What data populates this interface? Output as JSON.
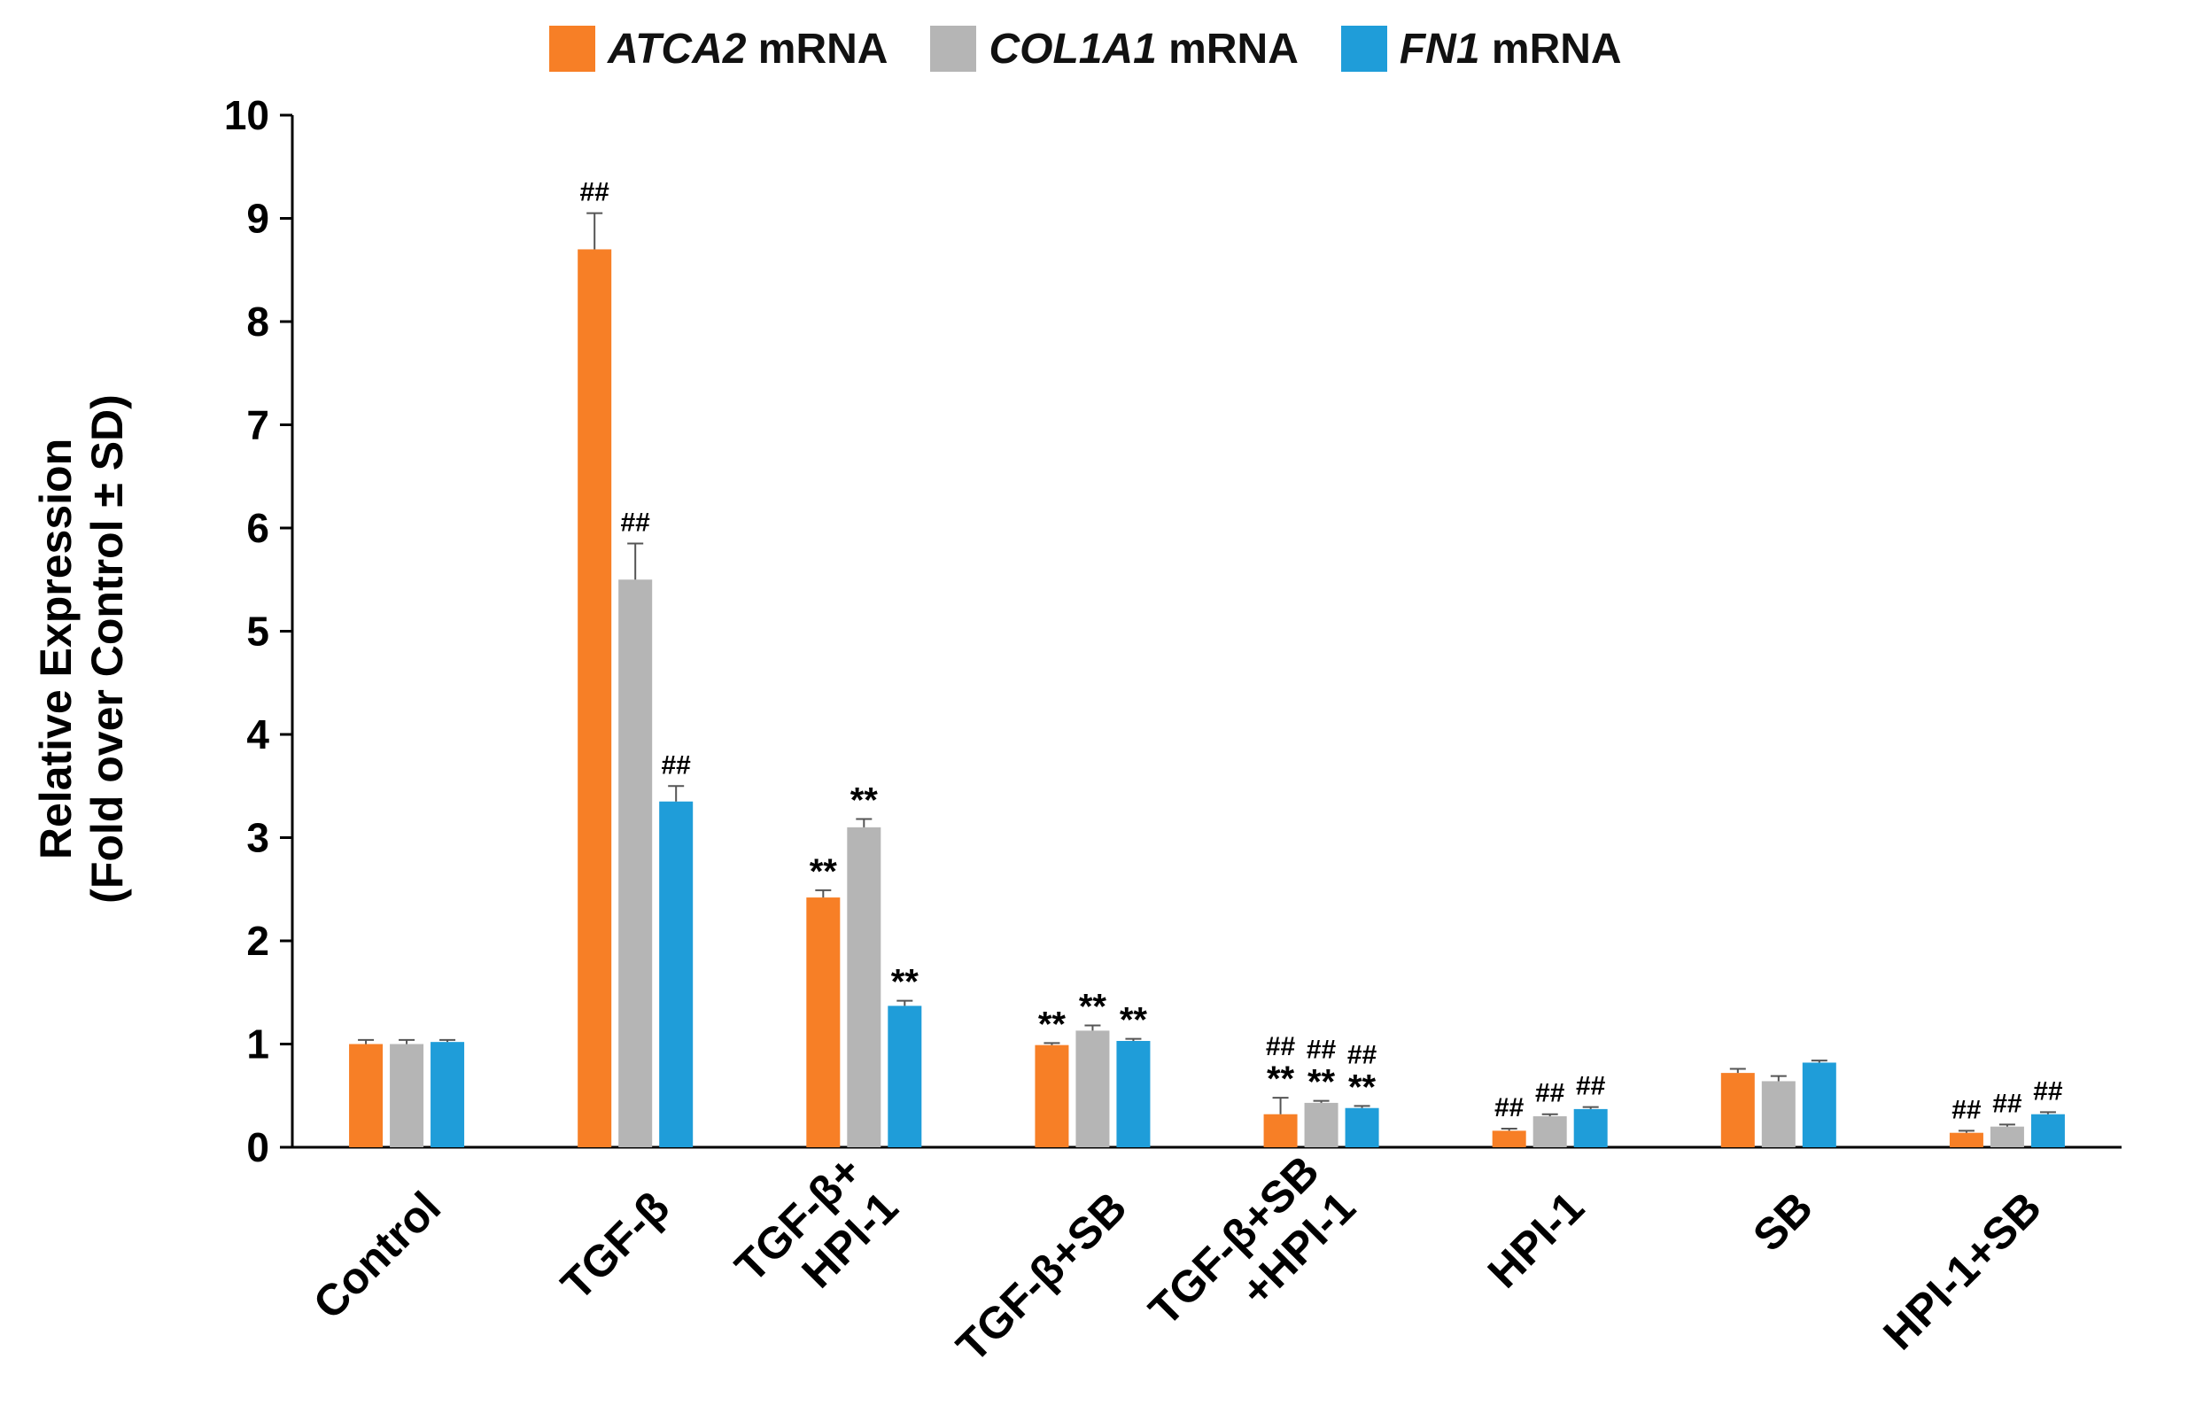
{
  "chart_data": {
    "type": "bar",
    "title": "",
    "xlabel": "",
    "ylabel_lines": [
      "Relative Expression",
      "(Fold over Control ± SD)"
    ],
    "ylim": [
      0,
      10
    ],
    "yticks": [
      "0",
      "1",
      "2",
      "3",
      "4",
      "5",
      "6",
      "7",
      "8",
      "9",
      "10"
    ],
    "categories": [
      "Control",
      "TGF-β",
      "TGF-β+ HPI-1",
      "TGF-β+SB",
      "TGF-β+SB +HPI-1",
      "HPI-1",
      "SB",
      "HPI-1+SB"
    ],
    "category_lines": [
      [
        "Control"
      ],
      [
        "TGF-β"
      ],
      [
        "TGF-β+",
        "HPI-1"
      ],
      [
        "TGF-β+SB"
      ],
      [
        "TGF-β+SB",
        "+HPI-1"
      ],
      [
        "HPI-1"
      ],
      [
        "SB"
      ],
      [
        "HPI-1+SB"
      ]
    ],
    "series": [
      {
        "name": "ATCA2 mRNA",
        "gene": "ATCA2",
        "suffix": " mRNA",
        "color": "#F77F26",
        "values": [
          1.0,
          8.7,
          2.42,
          0.99,
          0.32,
          0.16,
          0.72,
          0.14
        ],
        "errors": [
          0.04,
          0.35,
          0.07,
          0.02,
          0.16,
          0.02,
          0.04,
          0.02
        ],
        "annotations": [
          [],
          [
            "##"
          ],
          [
            "**"
          ],
          [
            "**"
          ],
          [
            "##",
            "**"
          ],
          [
            "##"
          ],
          [],
          [
            "##"
          ]
        ]
      },
      {
        "name": "COL1A1 mRNA",
        "gene": "COL1A1",
        "suffix": " mRNA",
        "color": "#B5B5B5",
        "values": [
          1.0,
          5.5,
          3.1,
          1.13,
          0.43,
          0.3,
          0.64,
          0.2
        ],
        "errors": [
          0.04,
          0.35,
          0.08,
          0.05,
          0.02,
          0.02,
          0.05,
          0.02
        ],
        "annotations": [
          [],
          [
            "##"
          ],
          [
            "**"
          ],
          [
            "**"
          ],
          [
            "##",
            "**"
          ],
          [
            "##"
          ],
          [],
          [
            "##"
          ]
        ]
      },
      {
        "name": "FN1 mRNA",
        "gene": "FN1",
        "suffix": " mRNA",
        "color": "#1F9DD9",
        "values": [
          1.02,
          3.35,
          1.37,
          1.03,
          0.38,
          0.37,
          0.82,
          0.32
        ],
        "errors": [
          0.02,
          0.15,
          0.05,
          0.02,
          0.02,
          0.02,
          0.02,
          0.02
        ],
        "annotations": [
          [],
          [
            "##"
          ],
          [
            "**"
          ],
          [
            "**"
          ],
          [
            "##",
            "**"
          ],
          [
            "##"
          ],
          [],
          [
            "##"
          ]
        ]
      }
    ],
    "legend_position": "top-center",
    "grid": false
  }
}
